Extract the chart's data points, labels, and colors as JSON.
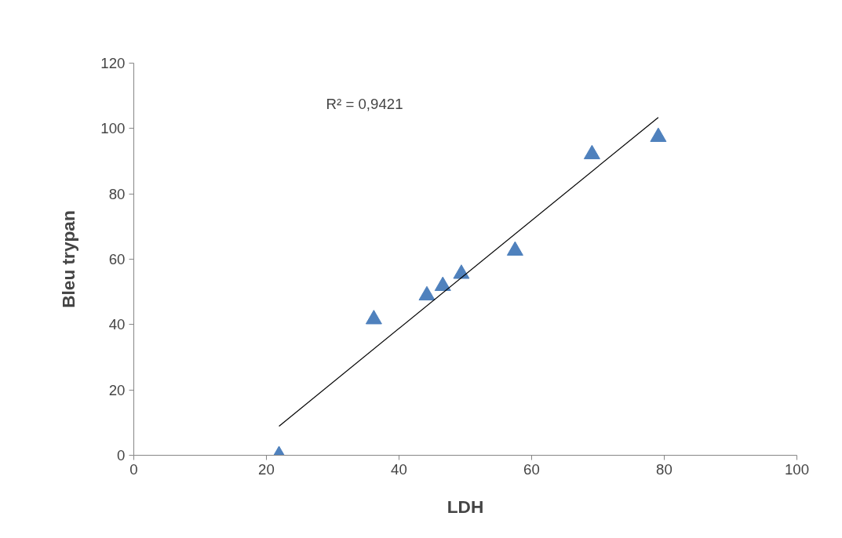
{
  "chart_data": {
    "type": "scatter",
    "xlabel": "LDH",
    "ylabel": "Bleu trypan",
    "xlim": [
      0,
      100
    ],
    "xticks": [
      0,
      20,
      40,
      60,
      80,
      100
    ],
    "ylim": [
      0,
      120
    ],
    "yticks": [
      0,
      20,
      40,
      60,
      80,
      100,
      120
    ],
    "grid": false,
    "marker": "triangle",
    "annotations": [
      "R² = 0,9421"
    ],
    "series": [
      {
        "color": "#4f81bd",
        "x": [
          21.9,
          36.2,
          44.2,
          46.6,
          49.4,
          57.5,
          69.1,
          79.1
        ],
        "values": [
          0,
          41.6,
          48.9,
          51.8,
          55.5,
          62.6,
          92.1,
          97.4
        ]
      },
      {
        "type": "line",
        "marker": "none",
        "color": "#000000",
        "x": [
          21.9,
          79.1
        ],
        "values": [
          8.9,
          103.4
        ]
      }
    ]
  }
}
